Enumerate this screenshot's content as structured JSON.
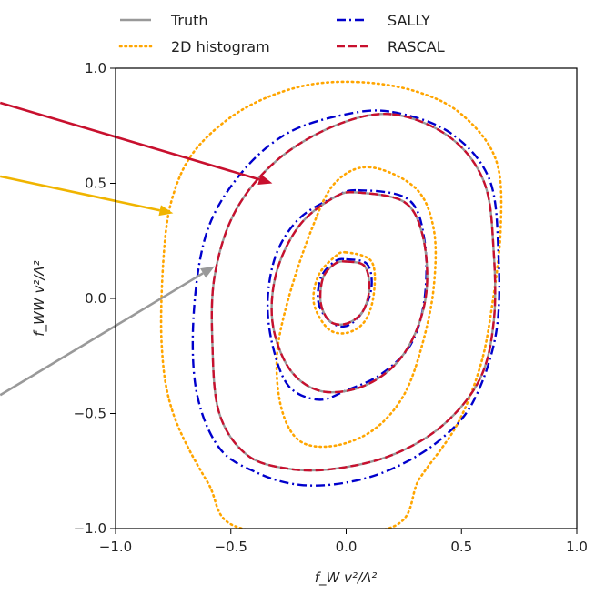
{
  "chart_data": {
    "type": "line",
    "xlabel": "f_W v²/Λ²",
    "ylabel": "f_WW v²/Λ²",
    "xlim": [
      -1.0,
      1.0
    ],
    "ylim": [
      -1.0,
      1.0
    ],
    "x_ticks": [
      "−1.0",
      "−0.5",
      "0.0",
      "0.5",
      "1.0"
    ],
    "y_ticks": [
      "−1.0",
      "−0.5",
      "0.0",
      "0.5",
      "1.0"
    ],
    "grid": false,
    "legend_position": "top",
    "series": [
      {
        "name": "Truth",
        "color": "#999999",
        "style": "solid",
        "contours": [
          [
            [
              0.0,
              0.16
            ],
            [
              0.08,
              0.14
            ],
            [
              0.1,
              0.04
            ],
            [
              0.07,
              -0.06
            ],
            [
              0.0,
              -0.11
            ],
            [
              -0.07,
              -0.1
            ],
            [
              -0.11,
              -0.02
            ],
            [
              -0.1,
              0.09
            ],
            [
              -0.05,
              0.15
            ]
          ],
          [
            [
              0.05,
              0.46
            ],
            [
              0.25,
              0.42
            ],
            [
              0.33,
              0.28
            ],
            [
              0.35,
              0.05
            ],
            [
              0.3,
              -0.15
            ],
            [
              0.2,
              -0.3
            ],
            [
              0.05,
              -0.39
            ],
            [
              -0.12,
              -0.4
            ],
            [
              -0.25,
              -0.3
            ],
            [
              -0.32,
              -0.1
            ],
            [
              -0.3,
              0.12
            ],
            [
              -0.2,
              0.32
            ],
            [
              -0.05,
              0.44
            ]
          ],
          [
            [
              0.2,
              0.8
            ],
            [
              0.45,
              0.7
            ],
            [
              0.6,
              0.5
            ],
            [
              0.64,
              0.2
            ],
            [
              0.64,
              -0.1
            ],
            [
              0.58,
              -0.35
            ],
            [
              0.42,
              -0.55
            ],
            [
              0.2,
              -0.68
            ],
            [
              -0.05,
              -0.74
            ],
            [
              -0.25,
              -0.74
            ],
            [
              -0.43,
              -0.68
            ],
            [
              -0.55,
              -0.5
            ],
            [
              -0.58,
              -0.2
            ],
            [
              -0.57,
              0.1
            ],
            [
              -0.48,
              0.38
            ],
            [
              -0.3,
              0.6
            ],
            [
              -0.05,
              0.75
            ]
          ]
        ]
      },
      {
        "name": "2D histogram",
        "color": "#FFA500",
        "style": "dotted",
        "contours": [
          [
            [
              0.0,
              0.2
            ],
            [
              0.11,
              0.16
            ],
            [
              0.12,
              0.02
            ],
            [
              0.08,
              -0.1
            ],
            [
              0.0,
              -0.15
            ],
            [
              -0.08,
              -0.13
            ],
            [
              -0.14,
              -0.02
            ],
            [
              -0.12,
              0.1
            ],
            [
              -0.05,
              0.18
            ]
          ],
          [
            [
              0.1,
              0.57
            ],
            [
              0.3,
              0.48
            ],
            [
              0.38,
              0.3
            ],
            [
              0.38,
              0.05
            ],
            [
              0.33,
              -0.2
            ],
            [
              0.25,
              -0.42
            ],
            [
              0.12,
              -0.57
            ],
            [
              -0.05,
              -0.64
            ],
            [
              -0.2,
              -0.62
            ],
            [
              -0.28,
              -0.48
            ],
            [
              -0.3,
              -0.25
            ],
            [
              -0.25,
              0.0
            ],
            [
              -0.15,
              0.3
            ],
            [
              -0.05,
              0.5
            ]
          ],
          [
            [
              0.05,
              0.94
            ],
            [
              0.3,
              0.9
            ],
            [
              0.5,
              0.8
            ],
            [
              0.65,
              0.6
            ],
            [
              0.67,
              0.3
            ],
            [
              0.63,
              -0.05
            ],
            [
              0.58,
              -0.3
            ],
            [
              0.48,
              -0.55
            ],
            [
              0.32,
              -0.78
            ],
            [
              0.18,
              -1.0
            ],
            [
              -0.45,
              -1.0
            ],
            [
              -0.6,
              -0.8
            ],
            [
              -0.75,
              -0.5
            ],
            [
              -0.8,
              -0.2
            ],
            [
              -0.79,
              0.2
            ],
            [
              -0.75,
              0.45
            ],
            [
              -0.65,
              0.65
            ],
            [
              -0.45,
              0.82
            ],
            [
              -0.2,
              0.92
            ]
          ]
        ]
      },
      {
        "name": "SALLY",
        "color": "#0000CC",
        "style": "dashdot",
        "contours": [
          [
            [
              0.0,
              0.17
            ],
            [
              0.09,
              0.15
            ],
            [
              0.11,
              0.05
            ],
            [
              0.07,
              -0.06
            ],
            [
              0.0,
              -0.12
            ],
            [
              -0.07,
              -0.1
            ],
            [
              -0.12,
              -0.02
            ],
            [
              -0.11,
              0.09
            ],
            [
              -0.05,
              0.16
            ]
          ],
          [
            [
              0.05,
              0.47
            ],
            [
              0.27,
              0.43
            ],
            [
              0.34,
              0.25
            ],
            [
              0.34,
              0.0
            ],
            [
              0.28,
              -0.2
            ],
            [
              0.15,
              -0.33
            ],
            [
              0.0,
              -0.4
            ],
            [
              -0.12,
              -0.44
            ],
            [
              -0.25,
              -0.38
            ],
            [
              -0.32,
              -0.2
            ],
            [
              -0.34,
              0.0
            ],
            [
              -0.3,
              0.2
            ],
            [
              -0.2,
              0.35
            ],
            [
              -0.05,
              0.44
            ]
          ],
          [
            [
              0.2,
              0.81
            ],
            [
              0.45,
              0.72
            ],
            [
              0.62,
              0.52
            ],
            [
              0.66,
              0.2
            ],
            [
              0.65,
              -0.15
            ],
            [
              0.55,
              -0.45
            ],
            [
              0.4,
              -0.62
            ],
            [
              0.2,
              -0.74
            ],
            [
              0.0,
              -0.8
            ],
            [
              -0.2,
              -0.81
            ],
            [
              -0.38,
              -0.76
            ],
            [
              -0.55,
              -0.65
            ],
            [
              -0.65,
              -0.4
            ],
            [
              -0.66,
              -0.05
            ],
            [
              -0.6,
              0.3
            ],
            [
              -0.45,
              0.55
            ],
            [
              -0.25,
              0.72
            ],
            [
              0.0,
              0.8
            ]
          ]
        ]
      },
      {
        "name": "RASCAL",
        "color": "#C8102E",
        "style": "dashed",
        "contours": [
          [
            [
              0.0,
              0.16
            ],
            [
              0.08,
              0.14
            ],
            [
              0.1,
              0.04
            ],
            [
              0.07,
              -0.06
            ],
            [
              0.0,
              -0.11
            ],
            [
              -0.07,
              -0.1
            ],
            [
              -0.11,
              -0.02
            ],
            [
              -0.1,
              0.09
            ],
            [
              -0.05,
              0.15
            ]
          ],
          [
            [
              0.05,
              0.46
            ],
            [
              0.25,
              0.42
            ],
            [
              0.33,
              0.28
            ],
            [
              0.35,
              0.05
            ],
            [
              0.3,
              -0.15
            ],
            [
              0.2,
              -0.3
            ],
            [
              0.05,
              -0.39
            ],
            [
              -0.12,
              -0.4
            ],
            [
              -0.25,
              -0.3
            ],
            [
              -0.32,
              -0.1
            ],
            [
              -0.3,
              0.12
            ],
            [
              -0.2,
              0.32
            ],
            [
              -0.05,
              0.44
            ]
          ],
          [
            [
              0.2,
              0.8
            ],
            [
              0.45,
              0.7
            ],
            [
              0.6,
              0.5
            ],
            [
              0.64,
              0.2
            ],
            [
              0.64,
              -0.1
            ],
            [
              0.58,
              -0.35
            ],
            [
              0.42,
              -0.55
            ],
            [
              0.2,
              -0.68
            ],
            [
              -0.05,
              -0.74
            ],
            [
              -0.25,
              -0.74
            ],
            [
              -0.43,
              -0.68
            ],
            [
              -0.55,
              -0.5
            ],
            [
              -0.58,
              -0.2
            ],
            [
              -0.57,
              0.1
            ],
            [
              -0.48,
              0.38
            ],
            [
              -0.3,
              0.6
            ],
            [
              -0.05,
              0.75
            ]
          ]
        ]
      }
    ],
    "annotations": [
      {
        "type": "arrow",
        "color": "#C8102E",
        "from": [
          -1.5,
          0.85
        ],
        "to": [
          -0.32,
          0.5
        ]
      },
      {
        "type": "arrow",
        "color": "#F0B400",
        "from": [
          -1.5,
          0.53
        ],
        "to": [
          -0.75,
          0.37
        ]
      },
      {
        "type": "arrow",
        "color": "#999999",
        "from": [
          -1.5,
          -0.42
        ],
        "to": [
          -0.57,
          0.14
        ]
      }
    ]
  }
}
